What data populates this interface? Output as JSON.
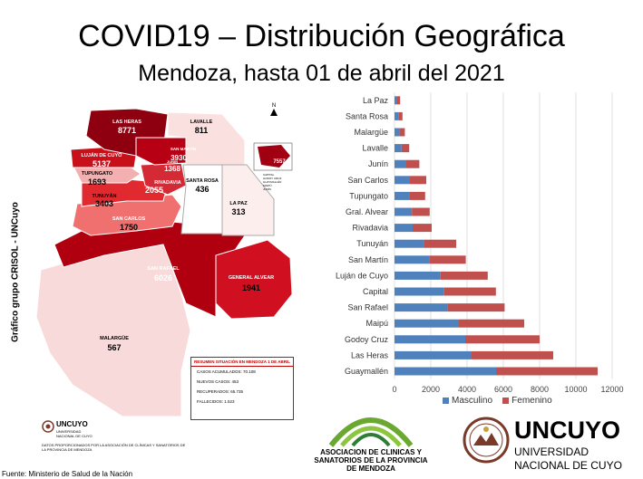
{
  "header": {
    "title": "COVID19 – Distribución Geográfica",
    "subtitle": "Mendoza, hasta 01 de abril del 2021"
  },
  "side_label": "Gráfico grupo CRISOL - UNCuyo",
  "map": {
    "departments": [
      {
        "name": "LAS HERAS",
        "value": "8771"
      },
      {
        "name": "LAVALLE",
        "value": "811"
      },
      {
        "name": "LUJÁN DE CUYO",
        "value": "5137"
      },
      {
        "name": "SAN MARTÍN",
        "value": "3930"
      },
      {
        "name": "JUNÍN",
        "value": "1368"
      },
      {
        "name": "TUPUNGATO",
        "value": "1693"
      },
      {
        "name": "RIVADAVIA",
        "value": "2055"
      },
      {
        "name": "SANTA ROSA",
        "value": "436"
      },
      {
        "name": "LA PAZ",
        "value": "313"
      },
      {
        "name": "TUNUYÁN",
        "value": "3403"
      },
      {
        "name": "SAN CARLOS",
        "value": "1750"
      },
      {
        "name": "SAN RAFAEL",
        "value": "6026"
      },
      {
        "name": "GENERAL ALVEAR",
        "value": "1941"
      },
      {
        "name": "MALARGÜE",
        "value": "567"
      }
    ],
    "inset_value": "7557",
    "inset_legend": [
      "CAPITAL",
      "GODOY CRUZ",
      "GUAYMALLÉN",
      "MAIPÚ",
      "JUNÍN"
    ],
    "north_label": "N",
    "summary": {
      "heading": "RESUMEN SITUACIÓN EN MENDOZA 1 DE ABRIL",
      "rows": [
        "CASOS ACUMULADOS: 70.108",
        "NUEVOS CASOS: 453",
        "RECUPERADOS: 65.735",
        "FALLECIDOS: 1.523"
      ]
    },
    "logo_name": "UNCUYO",
    "logo_sub": "UNIVERSIDAD NACIONAL DE CUYO",
    "credits": "DATOS PROPORCIONADOS POR LA ASOCIACIÓN DE CLÍNICAS Y SANATORIOS DE LA PROVINCIA DE MENDOZA"
  },
  "chart_data": {
    "type": "bar",
    "orientation": "horizontal",
    "stacked": true,
    "categories": [
      "La Paz",
      "Santa Rosa",
      "Malargüe",
      "Lavalle",
      "Junín",
      "San Carlos",
      "Tupungato",
      "Gral. Alvear",
      "Rivadavia",
      "Tunuyán",
      "San Martín",
      "Luján de Cuyo",
      "Capital",
      "San Rafael",
      "Maipú",
      "Godoy Cruz",
      "Las Heras",
      "Guaymallén"
    ],
    "series": [
      {
        "name": "Masculino",
        "color": "#4f81bd",
        "values": [
          150,
          210,
          280,
          390,
          650,
          850,
          820,
          960,
          1000,
          1620,
          1930,
          2540,
          2740,
          2920,
          3550,
          3900,
          4250,
          5600
        ]
      },
      {
        "name": "Femenino",
        "color": "#c0504d",
        "values": [
          160,
          230,
          290,
          420,
          720,
          900,
          870,
          980,
          1050,
          1780,
          2000,
          2600,
          2850,
          3150,
          3600,
          4100,
          4500,
          5600
        ]
      }
    ],
    "x_ticks": [
      0,
      2000,
      4000,
      6000,
      8000,
      10000,
      12000
    ],
    "xlim": [
      0,
      12000
    ],
    "legend_position": "bottom"
  },
  "footer": {
    "source": "Fuente: Ministerio de Salud de la Nación",
    "association": "ASOCIACION DE CLINICAS Y SANATORIOS DE LA PROVINCIA DE MENDOZA",
    "uncuyo_name": "UNCUYO",
    "uncuyo_sub1": "UNIVERSIDAD",
    "uncuyo_sub2": "NACIONAL DE CUYO"
  }
}
